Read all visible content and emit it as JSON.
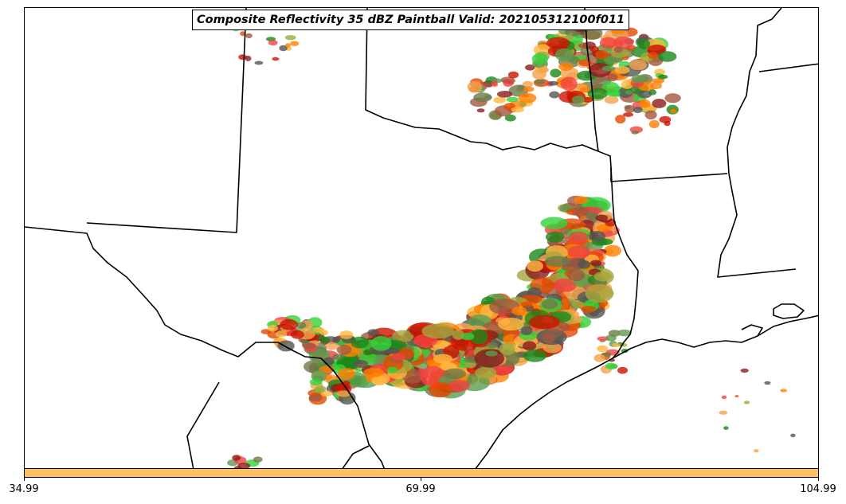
{
  "title": "Composite Reflectivity 35 dBZ Paintball Valid: 202105312100f011",
  "colorbar": {
    "color": "#ffc061",
    "ticks": [
      "34.99",
      "69.99",
      "104.99"
    ]
  },
  "member_colors": [
    "#ff8000",
    "#e34a00",
    "#cc1400",
    "#f24242",
    "#a3583f",
    "#8b1b1b",
    "#6e7b4a",
    "#a5a83c",
    "#5d9e50",
    "#32d339",
    "#1a8a1a",
    "#f4a24d",
    "#ffb840",
    "#555555"
  ]
}
